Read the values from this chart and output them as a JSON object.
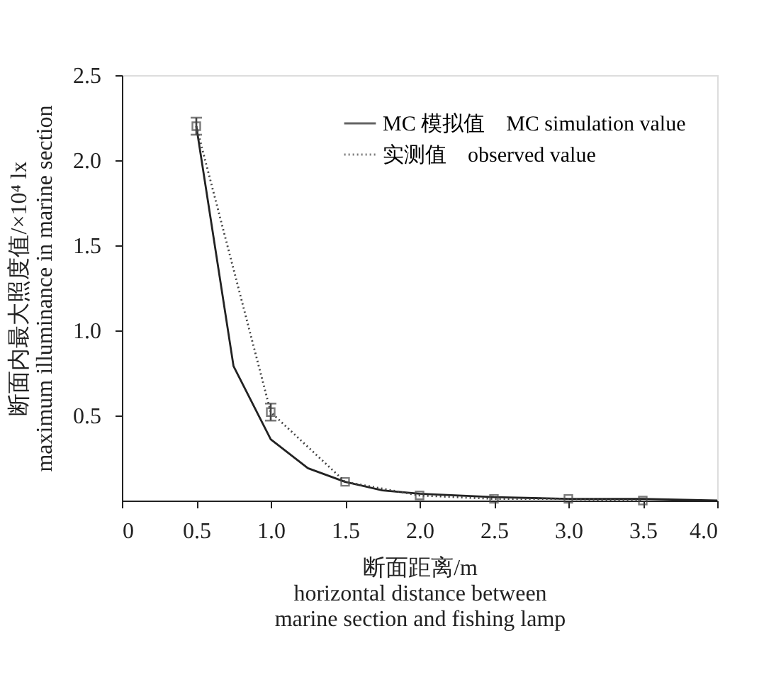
{
  "chart_data": {
    "type": "line",
    "xlabel": "断面距离/m\nhorizontal distance between\nmarine section and fishing lamp",
    "ylabel": "断面内最大照度值/×10⁴ lx\nmaximum illuminance in marine section",
    "xlim": [
      0,
      4
    ],
    "xticks": [
      0,
      0.5,
      {
        "value": 1,
        "label": "1.0"
      },
      1.5,
      {
        "value": 2,
        "label": "2.0"
      },
      2.5,
      {
        "value": 3,
        "label": "3.0"
      },
      3.5,
      {
        "value": 4,
        "label": "4.0"
      }
    ],
    "ylim": [
      0,
      2.5
    ],
    "yticks": [
      0.5,
      {
        "value": 1,
        "label": "1.0"
      },
      1.5,
      {
        "value": 2,
        "label": "2.0"
      },
      2.5
    ],
    "grid": false,
    "legend": "top right",
    "series": [
      {
        "name": "MC 模拟值　MC simulation value",
        "color": "#222222",
        "line_style": "solid",
        "marker": "none",
        "x": [
          0.5,
          0.75,
          1.0,
          1.25,
          1.5,
          1.75,
          2.0,
          2.5,
          3.0,
          3.5,
          4.0
        ],
        "values": [
          2.2,
          0.79,
          0.36,
          0.19,
          0.11,
          0.06,
          0.04,
          0.02,
          0.01,
          0.01,
          0.0
        ]
      },
      {
        "name": "实测值　observed value",
        "color": "#444444",
        "line_style": "dotted",
        "marker": "square",
        "x": [
          0.5,
          1.0,
          1.5,
          2.0,
          2.5,
          3.0,
          3.5
        ],
        "values": [
          2.2,
          0.52,
          0.11,
          0.03,
          0.01,
          0.01,
          0.0
        ],
        "errors": [
          0.05,
          0.05,
          null,
          null,
          null,
          null,
          null
        ]
      }
    ]
  }
}
